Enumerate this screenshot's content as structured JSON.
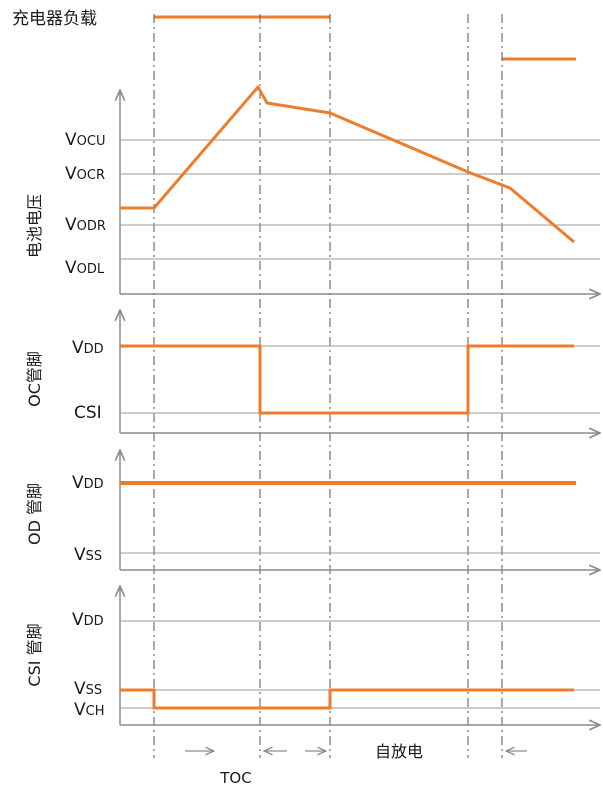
{
  "colors": {
    "signal": "#ee7d2b",
    "axis": "#8c8c8c",
    "grid": "#9a9a9a",
    "dash": "#555555",
    "text": "#1a1a1a"
  },
  "charger_load": {
    "label": "充电器负载"
  },
  "battery_panel": {
    "ylabel": "电池电压",
    "levels": [
      {
        "main": "V",
        "sub": "OCU"
      },
      {
        "main": "V",
        "sub": "OCR"
      },
      {
        "main": "V",
        "sub": "ODR"
      },
      {
        "main": "V",
        "sub": "ODL"
      }
    ]
  },
  "oc_panel": {
    "ylabel": "OC管脚",
    "levels": [
      {
        "main": "V",
        "sub": "DD"
      },
      {
        "main": "CSI",
        "sub": ""
      }
    ]
  },
  "od_panel": {
    "ylabel": "OD 管脚",
    "levels": [
      {
        "main": "V",
        "sub": "DD"
      },
      {
        "main": "V",
        "sub": "SS"
      }
    ]
  },
  "csi_panel": {
    "ylabel": "CSI 管脚",
    "levels": [
      {
        "main": "V",
        "sub": "DD"
      },
      {
        "main": "V",
        "sub": "SS"
      },
      {
        "main": "V",
        "sub": "CH"
      }
    ]
  },
  "annotations": {
    "toc": "TOC",
    "self_discharge": "自放电"
  }
}
